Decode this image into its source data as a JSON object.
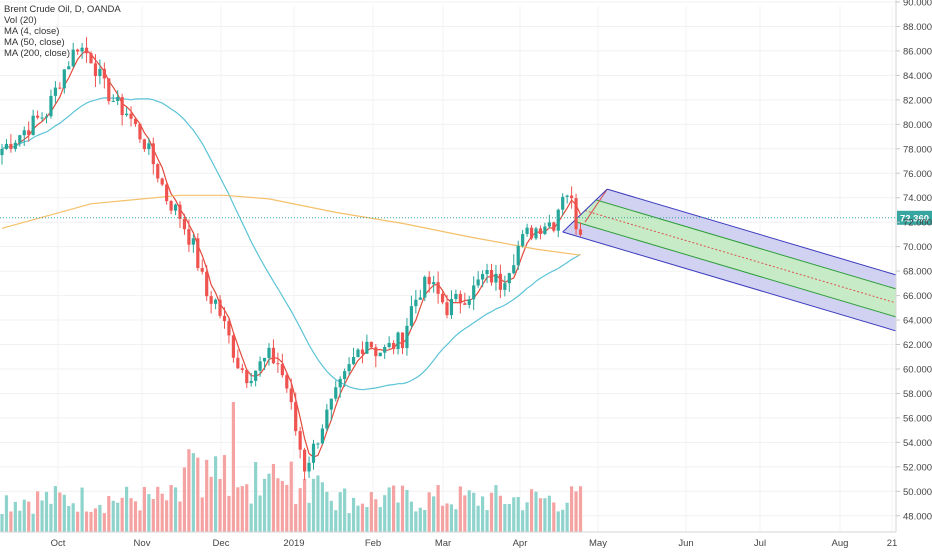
{
  "legend": {
    "title": "Brent Crude Oil, D, OANDA",
    "vol": "Vol (20)",
    "ma4": "MA (4, close)",
    "ma50": "MA (50, close)",
    "ma200": "MA (200, close)"
  },
  "colors": {
    "up": "#26a69a",
    "down": "#ef5350",
    "vol_up": "#8fd3cd",
    "vol_down": "#f5a3a2",
    "ma4": "#e24a3b",
    "ma50": "#5bc4d6",
    "ma200": "#f5c06a",
    "pitchfork_outer": "#3b3bbd",
    "pitchfork_outer_fill": "#c9c9f0",
    "pitchfork_inner": "#2e9e3a",
    "pitchfork_inner_fill": "#c7ecc4",
    "price_line": "#37a5a0",
    "price_tag_bg": "#37a5a0"
  },
  "chart_data": {
    "type": "candlestick",
    "title": "Brent Crude Oil, D, OANDA",
    "ylim": [
      47,
      90
    ],
    "y_ticks": [
      "48.000",
      "50.000",
      "52.000",
      "54.000",
      "56.000",
      "58.000",
      "60.000",
      "62.000",
      "64.000",
      "66.000",
      "68.000",
      "70.000",
      "72.000",
      "74.000",
      "76.000",
      "78.000",
      "80.000",
      "82.000",
      "84.000",
      "86.000",
      "88.000",
      "90.000"
    ],
    "x_ticks": [
      "Oct",
      "Nov",
      "Dec",
      "2019",
      "Feb",
      "Mar",
      "Apr",
      "May",
      "Jun",
      "Jul",
      "Aug",
      "21"
    ],
    "last_price": "72.360",
    "grid": true,
    "price_waypoints": [
      [
        0,
        78.0
      ],
      [
        5,
        79.5
      ],
      [
        10,
        81.0
      ],
      [
        14,
        84.5
      ],
      [
        17,
        86.5
      ],
      [
        20,
        85.5
      ],
      [
        23,
        83.0
      ],
      [
        26,
        81.5
      ],
      [
        28,
        81.0
      ],
      [
        32,
        78.5
      ],
      [
        35,
        76.0
      ],
      [
        37,
        74.0
      ],
      [
        40,
        72.5
      ],
      [
        43,
        70.0
      ],
      [
        46,
        66.0
      ],
      [
        48,
        65.5
      ],
      [
        50,
        63.5
      ],
      [
        53,
        60.5
      ],
      [
        55,
        59.5
      ],
      [
        57,
        60.0
      ],
      [
        60,
        61.0
      ],
      [
        62,
        60.5
      ],
      [
        64,
        58.5
      ],
      [
        66,
        55.0
      ],
      [
        68,
        52.0
      ],
      [
        70,
        53.5
      ],
      [
        72,
        55.5
      ],
      [
        74,
        57.0
      ],
      [
        76,
        58.5
      ],
      [
        78,
        60.0
      ],
      [
        80,
        61.5
      ],
      [
        82,
        62.5
      ],
      [
        84,
        61.5
      ],
      [
        86,
        61.5
      ],
      [
        88,
        62.0
      ],
      [
        90,
        62.5
      ],
      [
        92,
        65.0
      ],
      [
        94,
        66.5
      ],
      [
        96,
        67.0
      ],
      [
        98,
        66.0
      ],
      [
        100,
        65.0
      ],
      [
        102,
        65.5
      ],
      [
        104,
        66.0
      ],
      [
        106,
        66.5
      ],
      [
        108,
        67.5
      ],
      [
        110,
        67.5
      ],
      [
        112,
        67.0
      ],
      [
        114,
        68.5
      ],
      [
        116,
        70.0
      ],
      [
        118,
        71.0
      ],
      [
        120,
        71.5
      ],
      [
        122,
        72.0
      ],
      [
        124,
        72.0
      ],
      [
        126,
        74.5
      ],
      [
        127,
        74.5
      ],
      [
        128,
        73.5
      ],
      [
        129,
        72.0
      ],
      [
        130,
        71.5
      ]
    ],
    "ma200_waypoints": [
      [
        0,
        71.5
      ],
      [
        20,
        73.5
      ],
      [
        40,
        74.2
      ],
      [
        50,
        74.2
      ],
      [
        60,
        73.9
      ],
      [
        75,
        72.8
      ],
      [
        90,
        71.9
      ],
      [
        105,
        70.8
      ],
      [
        120,
        69.8
      ],
      [
        130,
        69.3
      ]
    ],
    "pitchfork": {
      "pivot": [
        131,
        72.0
      ],
      "upper_start": [
        136,
        74.7
      ],
      "lower_start": [
        126,
        71.2
      ],
      "median_slope_per_bar": -0.108
    }
  }
}
